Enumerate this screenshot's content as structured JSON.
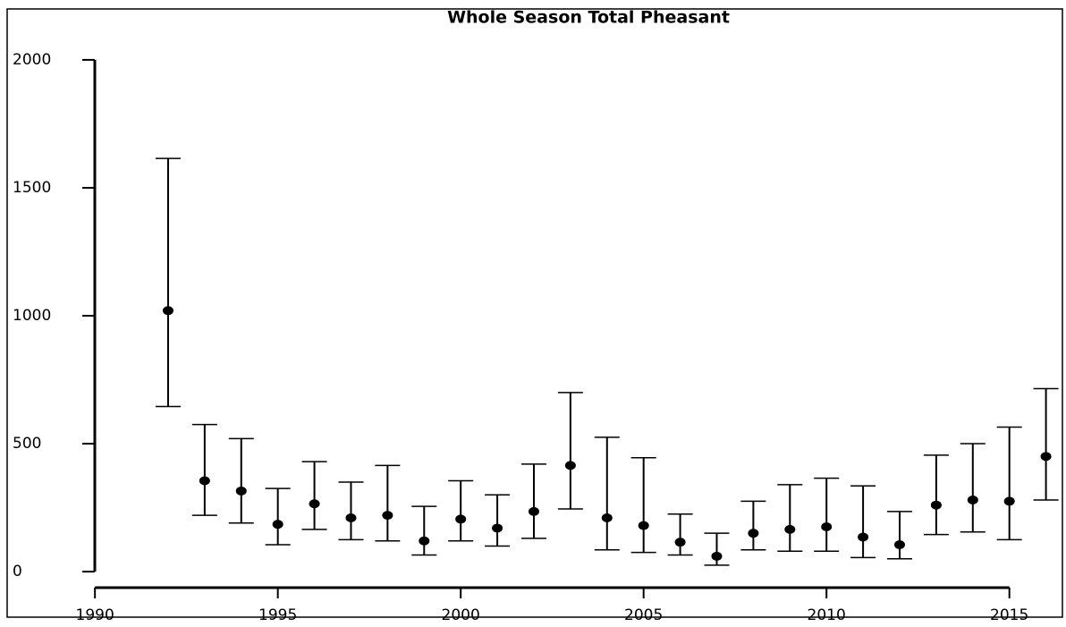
{
  "chart_data": {
    "type": "errorbar",
    "title": "Whole Season Total Pheasant",
    "x": [
      1992,
      1993,
      1994,
      1995,
      1996,
      1997,
      1998,
      1999,
      2000,
      2001,
      2002,
      2003,
      2004,
      2005,
      2006,
      2007,
      2008,
      2009,
      2010,
      2011,
      2012,
      2013,
      2014,
      2015,
      2016
    ],
    "values": [
      1020,
      355,
      315,
      185,
      265,
      210,
      220,
      120,
      205,
      170,
      235,
      415,
      210,
      180,
      115,
      60,
      150,
      165,
      175,
      135,
      105,
      260,
      280,
      275,
      450
    ],
    "lower": [
      645,
      220,
      190,
      105,
      165,
      125,
      120,
      65,
      120,
      100,
      130,
      245,
      85,
      75,
      65,
      25,
      85,
      80,
      80,
      55,
      50,
      145,
      155,
      125,
      280
    ],
    "upper": [
      1615,
      575,
      520,
      325,
      430,
      350,
      415,
      255,
      355,
      300,
      420,
      700,
      525,
      445,
      225,
      150,
      275,
      340,
      365,
      335,
      235,
      455,
      500,
      565,
      715
    ],
    "color": "#000000",
    "xlim": [
      1987.6,
      2016.45
    ],
    "ylim": [
      -178,
      2199
    ],
    "xticks": [
      1990,
      1995,
      2000,
      2005,
      2010,
      2015
    ],
    "yticks": [
      0,
      500,
      1000,
      1500,
      2000
    ]
  }
}
